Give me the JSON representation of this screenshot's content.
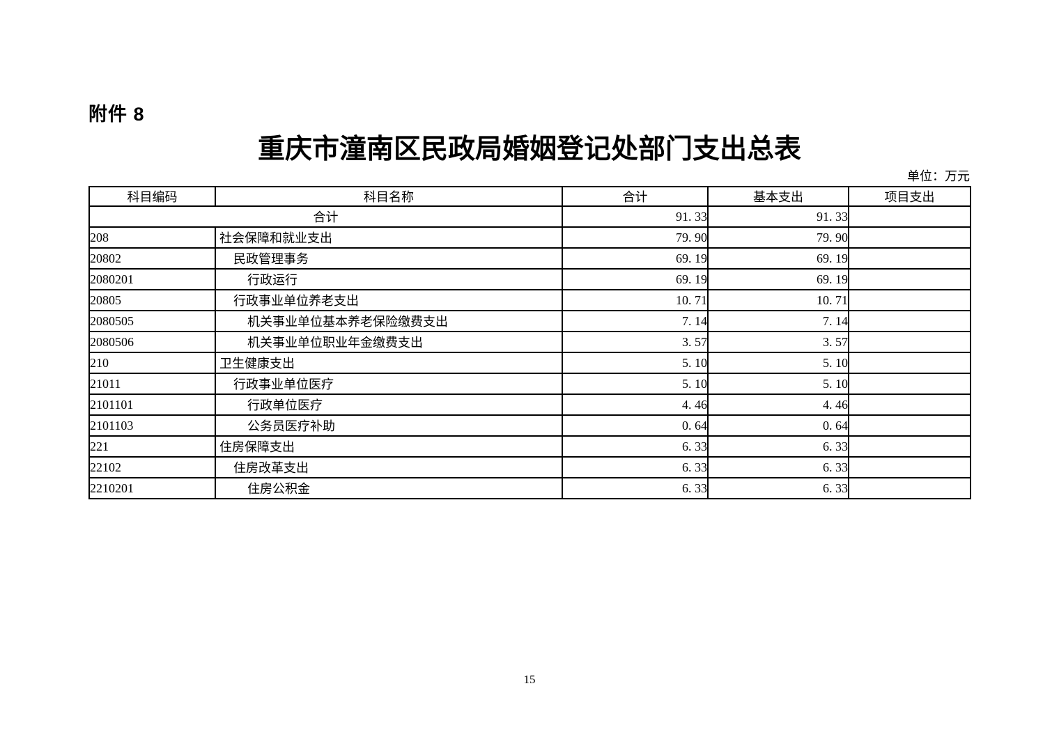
{
  "page": {
    "attachment_label": "附件 8",
    "title": "重庆市潼南区民政局婚姻登记处部门支出总表",
    "unit_note": "单位：万元",
    "page_number": "15"
  },
  "table": {
    "headers": [
      "科目编码",
      "科目名称",
      "合计",
      "基本支出",
      "项目支出"
    ],
    "rows": [
      {
        "code": "",
        "name": "合计",
        "total": "91.33",
        "basic": "91.33",
        "project": "",
        "indent": 0,
        "merged": true
      },
      {
        "code": "208",
        "name": "社会保障和就业支出",
        "total": "79.90",
        "basic": "79.90",
        "project": "",
        "indent": 1,
        "merged": false
      },
      {
        "code": "20802",
        "name": "民政管理事务",
        "total": "69.19",
        "basic": "69.19",
        "project": "",
        "indent": 2,
        "merged": false
      },
      {
        "code": "2080201",
        "name": "行政运行",
        "total": "69.19",
        "basic": "69.19",
        "project": "",
        "indent": 3,
        "merged": false
      },
      {
        "code": "20805",
        "name": "行政事业单位养老支出",
        "total": "10.71",
        "basic": "10.71",
        "project": "",
        "indent": 2,
        "merged": false
      },
      {
        "code": "2080505",
        "name": "机关事业单位基本养老保险缴费支出",
        "total": "7.14",
        "basic": "7.14",
        "project": "",
        "indent": 3,
        "merged": false
      },
      {
        "code": "2080506",
        "name": "机关事业单位职业年金缴费支出",
        "total": "3.57",
        "basic": "3.57",
        "project": "",
        "indent": 3,
        "merged": false
      },
      {
        "code": "210",
        "name": "卫生健康支出",
        "total": "5.10",
        "basic": "5.10",
        "project": "",
        "indent": 1,
        "merged": false
      },
      {
        "code": "21011",
        "name": "行政事业单位医疗",
        "total": "5.10",
        "basic": "5.10",
        "project": "",
        "indent": 2,
        "merged": false
      },
      {
        "code": "2101101",
        "name": "行政单位医疗",
        "total": "4.46",
        "basic": "4.46",
        "project": "",
        "indent": 3,
        "merged": false
      },
      {
        "code": "2101103",
        "name": "公务员医疗补助",
        "total": "0.64",
        "basic": "0.64",
        "project": "",
        "indent": 3,
        "merged": false
      },
      {
        "code": "221",
        "name": "住房保障支出",
        "total": "6.33",
        "basic": "6.33",
        "project": "",
        "indent": 1,
        "merged": false
      },
      {
        "code": "22102",
        "name": "住房改革支出",
        "total": "6.33",
        "basic": "6.33",
        "project": "",
        "indent": 2,
        "merged": false
      },
      {
        "code": "2210201",
        "name": "住房公积金",
        "total": "6.33",
        "basic": "6.33",
        "project": "",
        "indent": 3,
        "merged": false
      }
    ]
  }
}
